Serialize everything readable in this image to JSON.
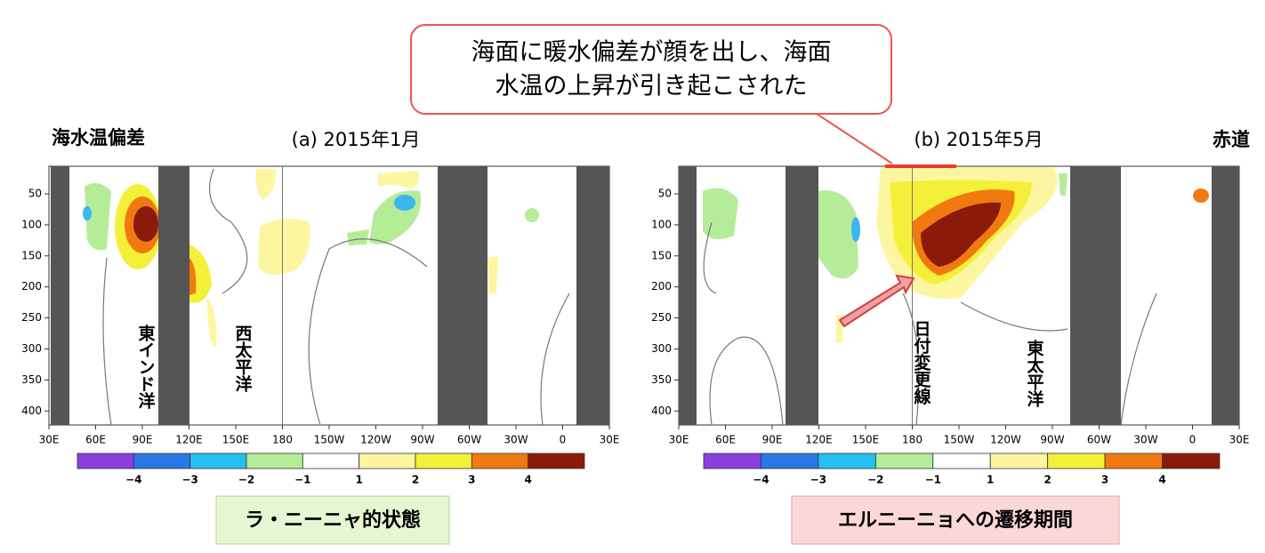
{
  "header": {
    "title": "海水温偏差",
    "right_label": "赤道"
  },
  "callout": {
    "lines": [
      "海面に暖水偏差が顔を出し、海面",
      "水温の上昇が引き起こされた"
    ]
  },
  "panels": [
    {
      "title": "(a) 2015年1月",
      "x_labels": [
        "30E",
        "60E",
        "90E",
        "120E",
        "150E",
        "180",
        "150W",
        "120W",
        "90W",
        "60W",
        "30W",
        "0",
        "30E"
      ],
      "y_labels": [
        "50",
        "100",
        "150",
        "200",
        "250",
        "300",
        "350",
        "400"
      ],
      "colorbar_labels": [
        "−4",
        "−3",
        "−2",
        "−1",
        "1",
        "2",
        "3",
        "4"
      ],
      "region_labels": [
        "東インド洋",
        "西太平洋"
      ],
      "caption": "ラ・ニーニャ的状態"
    },
    {
      "title": "(b) 2015年5月",
      "x_labels": [
        "30E",
        "60E",
        "90E",
        "120E",
        "150E",
        "180",
        "150W",
        "120W",
        "90W",
        "60W",
        "30W",
        "0",
        "30E"
      ],
      "y_labels": [
        "50",
        "100",
        "150",
        "200",
        "250",
        "300",
        "350",
        "400"
      ],
      "colorbar_labels": [
        "−4",
        "−3",
        "−2",
        "−1",
        "1",
        "2",
        "3",
        "4"
      ],
      "region_labels": [
        "日付変更線",
        "東太平洋"
      ],
      "caption": "エルニーニョへの遷移期間"
    }
  ]
}
